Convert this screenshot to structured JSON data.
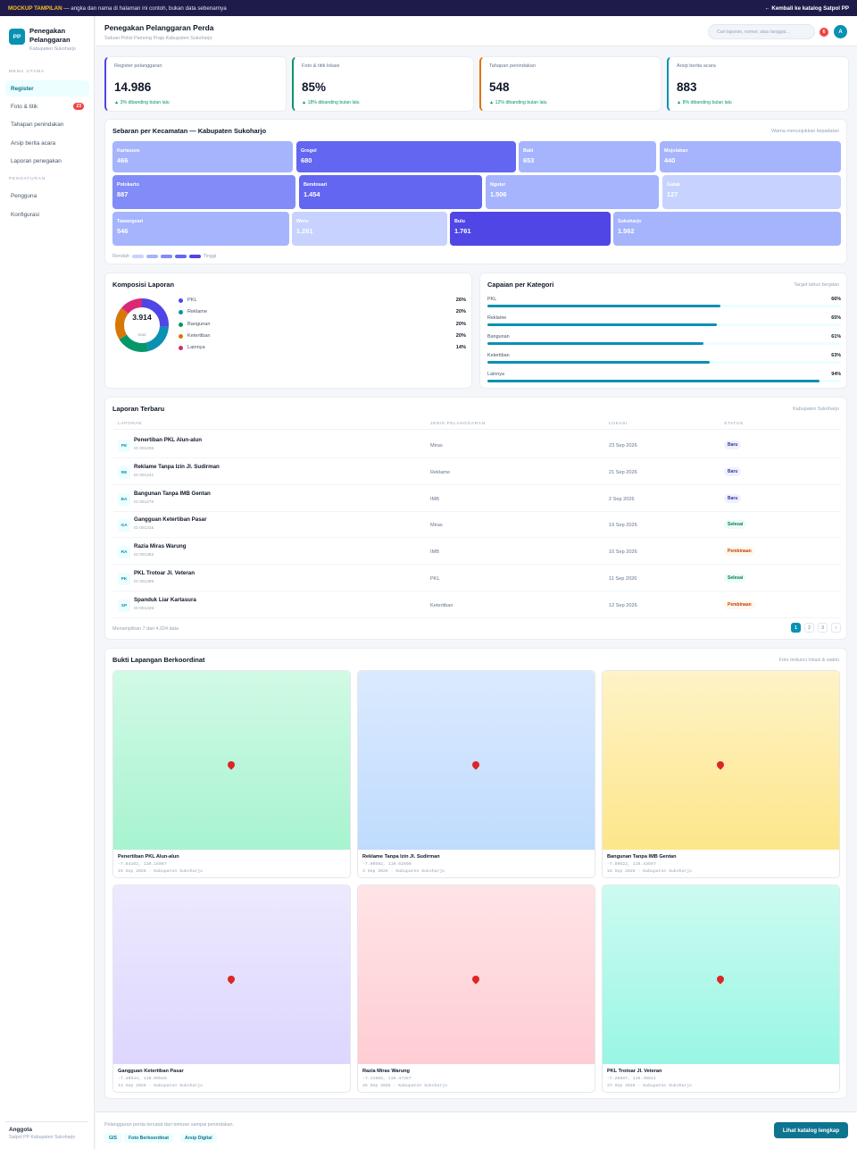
{
  "topbar": {
    "mock_label": "MOCKUP TAMPILAN",
    "mock_text": "— angka dan nama di halaman ini contoh, bukan data sebenarnya",
    "back_link": "← Kembali ke katalog Satpol PP"
  },
  "sidebar": {
    "logo": "PP",
    "app_title_1": "Penegakan",
    "app_title_2": "Pelanggaran",
    "app_sub": "Kabupaten Sukoharjo",
    "section_main": "MENU UTAMA",
    "main_items": [
      {
        "label": "Register",
        "badge": ""
      },
      {
        "label": "Foto & titik",
        "badge": "23"
      },
      {
        "label": "Tahapan penindakan",
        "badge": ""
      },
      {
        "label": "Arsip berita acara",
        "badge": ""
      },
      {
        "label": "Laporan penegakan",
        "badge": ""
      }
    ],
    "section_settings": "PENGATURAN",
    "settings_items": [
      {
        "label": "Pengguna"
      },
      {
        "label": "Konfigurasi"
      }
    ],
    "user_name": "Anggota",
    "user_role": "Satpol PP Kabupaten Sukoharjo"
  },
  "header": {
    "title": "Penegakan Pelanggaran Perda",
    "subtitle": "Satuan Polisi Pamong Praja Kabupaten Sukoharjo",
    "search_placeholder": "Cari laporan, nomor, atau tanggal...",
    "notif_count": "6",
    "avatar_initial": "A"
  },
  "kpis": [
    {
      "label": "Register pelanggaran",
      "value": "14.986",
      "delta": "▲ 3% dibanding bulan lalu",
      "accent": "#4f46e5"
    },
    {
      "label": "Foto & titik lokasi",
      "value": "85%",
      "delta": "▲ 18% dibanding bulan lalu",
      "accent": "#059669"
    },
    {
      "label": "Tahapan penindakan",
      "value": "548",
      "delta": "▲ 12% dibanding bulan lalu",
      "accent": "#d97706"
    },
    {
      "label": "Arsip berita acara",
      "value": "883",
      "delta": "▲ 8% dibanding bulan lalu",
      "accent": "#0891b2"
    }
  ],
  "heatmap": {
    "title": "Sebaran per Kecamatan — Kabupaten Sukoharjo",
    "note": "Warna menunjukkan kepadatan",
    "legend_low": "Rendah",
    "legend_high": "Tinggi",
    "legend_colors": [
      "#c7d2fe",
      "#a5b4fc",
      "#818cf8",
      "#6366f1",
      "#4f46e5"
    ],
    "districts": [
      {
        "name": "Kartasura",
        "value": "466",
        "color": "#a5b4fc"
      },
      {
        "name": "Grogol",
        "value": "680",
        "color": "#6366f1"
      },
      {
        "name": "Baki",
        "value": "653",
        "color": "#a5b4fc"
      },
      {
        "name": "Mojolaban",
        "value": "440",
        "color": "#a5b4fc"
      },
      {
        "name": "Polokarto",
        "value": "887",
        "color": "#818cf8"
      },
      {
        "name": "Bendosari",
        "value": "1.454",
        "color": "#6366f1"
      },
      {
        "name": "Nguter",
        "value": "1.506",
        "color": "#a5b4fc"
      },
      {
        "name": "Gatak",
        "value": "127",
        "color": "#c7d2fe"
      },
      {
        "name": "Tawangsari",
        "value": "546",
        "color": "#a5b4fc"
      },
      {
        "name": "Weru",
        "value": "1.261",
        "color": "#c7d2fe"
      },
      {
        "name": "Bulu",
        "value": "1.761",
        "color": "#4f46e5"
      },
      {
        "name": "Sukoharjo",
        "value": "1.562",
        "color": "#a5b4fc"
      }
    ]
  },
  "composition": {
    "title": "Komposisi Laporan",
    "total": "3.914",
    "total_label": "total",
    "items": [
      {
        "label": "PKL",
        "pct": "26%",
        "value": 26,
        "color": "#4f46e5"
      },
      {
        "label": "Reklame",
        "pct": "20%",
        "value": 20,
        "color": "#0891b2"
      },
      {
        "label": "Bangunan",
        "pct": "20%",
        "value": 20,
        "color": "#059669"
      },
      {
        "label": "Ketertiban",
        "pct": "20%",
        "value": 20,
        "color": "#d97706"
      },
      {
        "label": "Lainnya",
        "pct": "14%",
        "value": 14,
        "color": "#db2777"
      }
    ]
  },
  "achievement": {
    "title": "Capaian per Kategori",
    "note": "Target tahun berjalan",
    "items": [
      {
        "label": "PKL",
        "pct": "66%",
        "value": 66
      },
      {
        "label": "Reklame",
        "pct": "65%",
        "value": 65
      },
      {
        "label": "Bangunan",
        "pct": "61%",
        "value": 61
      },
      {
        "label": "Ketertiban",
        "pct": "63%",
        "value": 63
      },
      {
        "label": "Lainnya",
        "pct": "94%",
        "value": 94
      }
    ]
  },
  "reports": {
    "title": "Laporan Terbaru",
    "note": "Kabupaten Sukoharjo",
    "columns": [
      "LAPORAN",
      "JENIS PELANGGARAN",
      "LOKASI",
      "STATUS"
    ],
    "rows": [
      {
        "initials": "PE",
        "title": "Penertiban PKL Alun-alun",
        "id": "ID 001206",
        "type": "Miras",
        "date": "23 Sep 2026",
        "status": "Baru",
        "status_class": "baru"
      },
      {
        "initials": "RE",
        "title": "Reklame Tanpa Izin Jl. Sudirman",
        "id": "ID 001241",
        "type": "Reklame",
        "date": "21 Sep 2026",
        "status": "Baru",
        "status_class": "baru"
      },
      {
        "initials": "BA",
        "title": "Bangunan Tanpa IMB Gentan",
        "id": "ID 001276",
        "type": "IMB",
        "date": "2 Sep 2026",
        "status": "Baru",
        "status_class": "baru"
      },
      {
        "initials": "GA",
        "title": "Gangguan Ketertiban Pasar",
        "id": "ID 001315",
        "type": "Miras",
        "date": "19 Sep 2026",
        "status": "Selesai",
        "status_class": "selesai"
      },
      {
        "initials": "RA",
        "title": "Razia Miras Warung",
        "id": "ID 001352",
        "type": "IMB",
        "date": "10 Sep 2026",
        "status": "Pembinaan",
        "status_class": "pembinaan"
      },
      {
        "initials": "PK",
        "title": "PKL Trotoar Jl. Veteran",
        "id": "ID 001389",
        "type": "PKL",
        "date": "11 Sep 2026",
        "status": "Selesai",
        "status_class": "selesai"
      },
      {
        "initials": "SP",
        "title": "Spanduk Liar Kartasura",
        "id": "ID 001426",
        "type": "Ketertiban",
        "date": "12 Sep 2026",
        "status": "Pembinaan",
        "status_class": "pembinaan"
      }
    ],
    "footer_text": "Menampilkan 7 dari 4.024 data",
    "pages": [
      "1",
      "2",
      "3",
      "›"
    ]
  },
  "evidence": {
    "title": "Bukti Lapangan Berkoordinat",
    "note": "Foto terkunci lokasi & waktu",
    "photos": [
      {
        "title": "Penertiban PKL Alun-alun",
        "coords": "-7.84102, 110.16987",
        "meta": "19 Sep 2026 · Kabupaten Sukoharjo",
        "bg": "linear-gradient(180deg,#d1fae5,#a7f3d0)"
      },
      {
        "title": "Reklame Tanpa Izin Jl. Sudirman",
        "coords": "-7.90592, 110.02698",
        "meta": "3 Sep 2026 · Kabupaten Sukoharjo",
        "bg": "linear-gradient(180deg,#dbeafe,#bfdbfe)"
      },
      {
        "title": "Bangunan Tanpa IMB Gentan",
        "coords": "-7.80622, 110.43597",
        "meta": "16 Sep 2026 · Kabupaten Sukoharjo",
        "bg": "linear-gradient(180deg,#fef3c7,#fde68a)"
      },
      {
        "title": "Gangguan Ketertiban Pasar",
        "coords": "-7.30544, 110.09548",
        "meta": "13 Sep 2026 · Kabupaten Sukoharjo",
        "bg": "linear-gradient(180deg,#ede9fe,#ddd6fe)"
      },
      {
        "title": "Razia Miras Warung",
        "coords": "-7.11608, 110.47287",
        "meta": "26 Sep 2026 · Kabupaten Sukoharjo",
        "bg": "linear-gradient(180deg,#ffe4e6,#fecdd3)"
      },
      {
        "title": "PKL Trotoar Jl. Veteran",
        "coords": "-7.25687, 110.49611",
        "meta": "27 Sep 2026 · Kabupaten Sukoharjo",
        "bg": "linear-gradient(180deg,#ccfbf1,#99f6e4)"
      }
    ]
  },
  "footer": {
    "text": "Pelanggaran perda tercatat dari temuan sampai penindakan.",
    "tags": [
      "GIS",
      "Foto Berkoordinat",
      "Arsip Digital"
    ],
    "cta": "Lihat katalog lengkap"
  }
}
